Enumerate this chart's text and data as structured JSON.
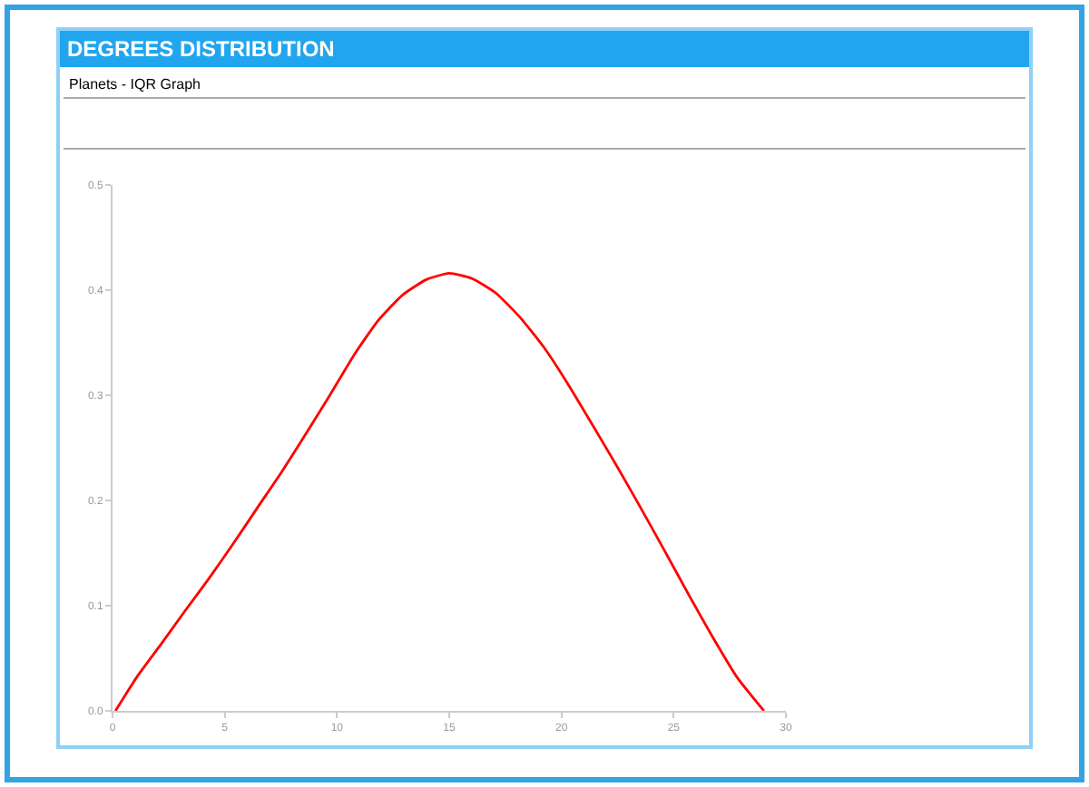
{
  "chart_data": {
    "type": "line",
    "title": "DEGREES DISTRIBUTION",
    "subtitle": "Planets - IQR Graph",
    "x": [
      0.13,
      1.08,
      2.15,
      3.23,
      4.3,
      5.38,
      6.45,
      7.53,
      8.6,
      9.68,
      10.75,
      11.83,
      12.9,
      13.98,
      15,
      16.02,
      17.09,
      18.16,
      19.24,
      20.31,
      21.38,
      22.46,
      23.53,
      24.6,
      25.68,
      26.74,
      27.82,
      29.02
    ],
    "series": [
      {
        "color": "#ff0000",
        "values": [
          0,
          0.032,
          0.063,
          0.095,
          0.126,
          0.159,
          0.193,
          0.227,
          0.263,
          0.3,
          0.338,
          0.371,
          0.395,
          0.41,
          0.416,
          0.411,
          0.397,
          0.374,
          0.345,
          0.31,
          0.272,
          0.233,
          0.193,
          0.152,
          0.11,
          0.07,
          0.032,
          0
        ]
      }
    ],
    "xlim": [
      0,
      30
    ],
    "ylim": [
      0,
      0.5
    ],
    "xticks": [
      0,
      5,
      10,
      15,
      20,
      25,
      30
    ],
    "yticks": [
      {
        "value": 0,
        "label": "0.0"
      },
      0.1,
      0.2,
      0.3,
      0.4,
      0.5
    ]
  }
}
